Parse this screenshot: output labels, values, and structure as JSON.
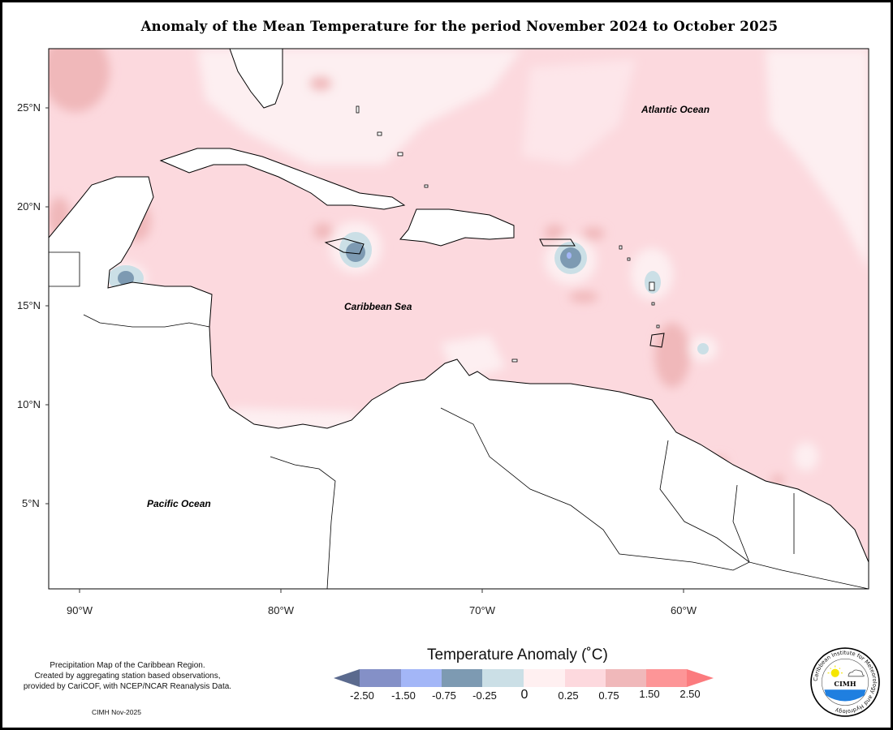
{
  "title": "Anomaly of the Mean Temperature for the period November 2024 to October 2025",
  "map": {
    "lat_ticks": [
      "25°N",
      "20°N",
      "15°N",
      "10°N",
      "5°N"
    ],
    "lon_ticks": [
      "90°W",
      "80°W",
      "70°W",
      "60°W"
    ],
    "labels": {
      "atlantic": "Atlantic Ocean",
      "caribbean": "Caribbean Sea",
      "pacific": "Pacific Ocean"
    }
  },
  "legend": {
    "title": "Temperature Anomaly (˚C)",
    "ticks": [
      "-2.50",
      "-1.50",
      "-0.75",
      "-0.25",
      "0",
      "0.25",
      "0.75",
      "1.50",
      "2.50"
    ],
    "colors": [
      "#5b6a8e",
      "#8490c7",
      "#a3b6f7",
      "#7d9ab2",
      "#cbdfe6",
      "#fff0f1",
      "#fdd9de",
      "#f0b8ba",
      "#fd9597",
      "#fb7b7e"
    ]
  },
  "footer": {
    "note_lines": [
      "Precipitation Map of the Caribbean Region.",
      "Created by aggregating station based observations,",
      "provided by CariCOF, with NCEP/NCAR Reanalysis Data."
    ],
    "credit": "CIMH Nov-2025"
  },
  "logo": {
    "acronym": "CIMH",
    "ring_text": "Caribbean Institute for Meteorology and Hydrology"
  }
}
